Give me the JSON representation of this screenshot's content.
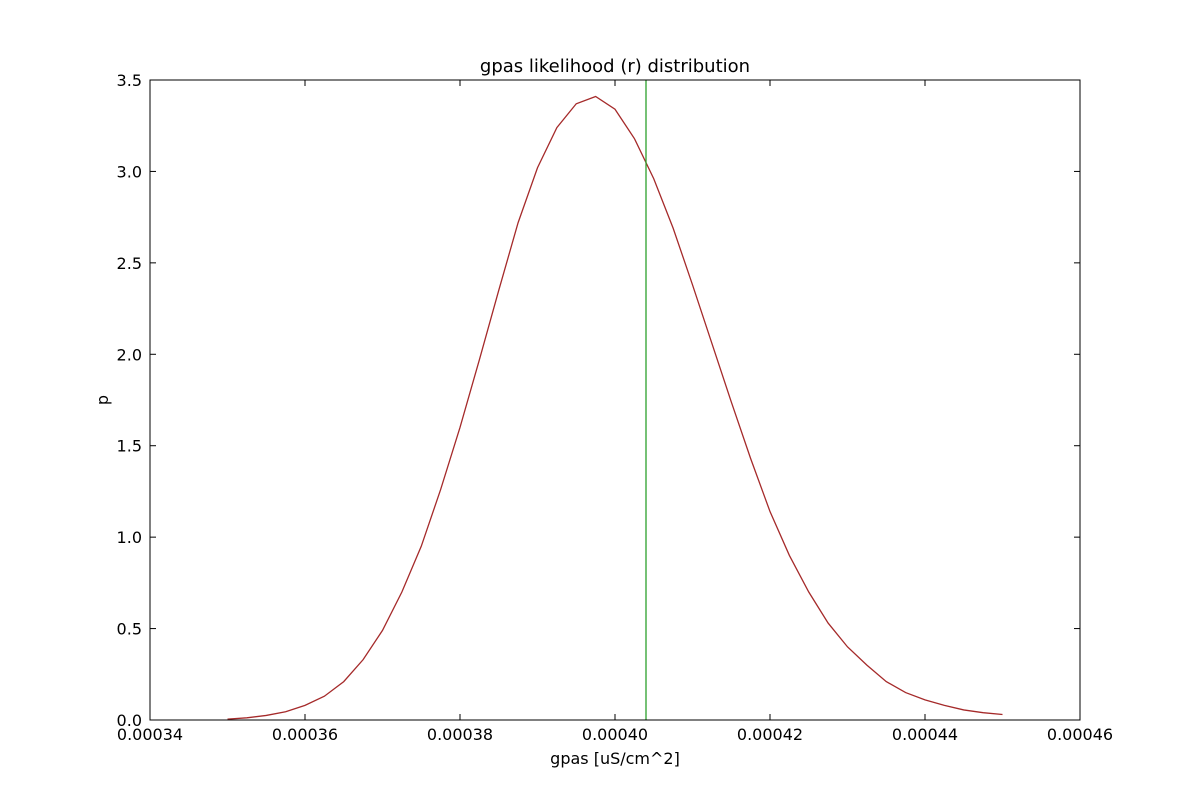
{
  "chart_data": {
    "type": "line",
    "title": "gpas likelihood (r) distribution",
    "xlabel": "gpas [uS/cm^2]",
    "ylabel": "p",
    "xlim": [
      0.00034,
      0.00046
    ],
    "ylim": [
      0.0,
      3.5
    ],
    "xticks": [
      0.00034,
      0.00036,
      0.00038,
      0.0004,
      0.00042,
      0.00044,
      0.00046
    ],
    "xtick_labels": [
      "0.00034",
      "0.00036",
      "0.00038",
      "0.00040",
      "0.00042",
      "0.00044",
      "0.00046"
    ],
    "yticks": [
      0.0,
      0.5,
      1.0,
      1.5,
      2.0,
      2.5,
      3.0,
      3.5
    ],
    "ytick_labels": [
      "0.0",
      "0.5",
      "1.0",
      "1.5",
      "2.0",
      "2.5",
      "3.0",
      "3.5"
    ],
    "grid": false,
    "series": [
      {
        "color": "#a52a2a",
        "x": [
          0.00035,
          0.0003525,
          0.000355,
          0.0003575,
          0.00036,
          0.0003625,
          0.000365,
          0.0003675,
          0.00037,
          0.0003725,
          0.000375,
          0.0003775,
          0.00038,
          0.0003825,
          0.000385,
          0.0003875,
          0.00039,
          0.0003925,
          0.000395,
          0.0003975,
          0.0004,
          0.0004025,
          0.000405,
          0.0004075,
          0.00041,
          0.0004125,
          0.000415,
          0.0004175,
          0.00042,
          0.0004225,
          0.000425,
          0.0004275,
          0.00043,
          0.0004325,
          0.000435,
          0.0004375,
          0.00044,
          0.0004425,
          0.000445,
          0.0004475,
          0.00045
        ],
        "y": [
          0.005,
          0.012,
          0.025,
          0.045,
          0.08,
          0.13,
          0.21,
          0.33,
          0.49,
          0.7,
          0.95,
          1.26,
          1.6,
          1.97,
          2.35,
          2.72,
          3.02,
          3.24,
          3.37,
          3.41,
          3.34,
          3.18,
          2.96,
          2.69,
          2.38,
          2.06,
          1.74,
          1.43,
          1.14,
          0.9,
          0.7,
          0.53,
          0.4,
          0.3,
          0.21,
          0.15,
          0.11,
          0.08,
          0.055,
          0.04,
          0.03
        ]
      }
    ],
    "vlines": [
      {
        "x": 0.000404,
        "color": "#2ca02c"
      }
    ]
  }
}
